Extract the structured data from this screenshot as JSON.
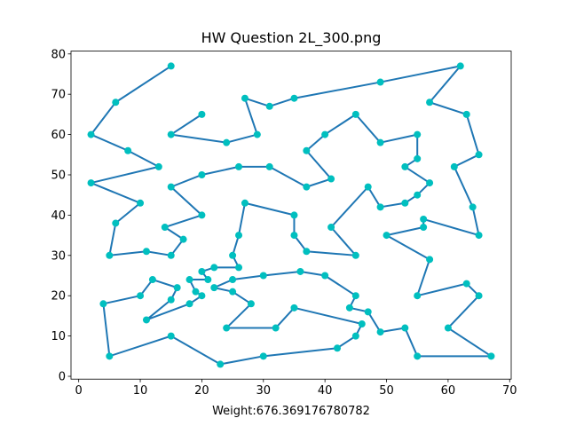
{
  "chart_data": {
    "type": "line",
    "title": "HW Question 2L_300.png",
    "x_label": "Weight:676.369176780782",
    "line_color": "#1f77b4",
    "marker_color": "#00bfbf",
    "x": [
      15,
      6,
      2,
      8,
      13,
      2,
      10,
      6,
      5,
      11,
      15,
      17,
      14,
      20,
      15,
      20,
      26,
      31,
      37,
      41,
      37,
      40,
      45,
      49,
      55,
      55,
      53,
      57,
      55,
      53,
      49,
      47,
      41,
      45,
      37,
      35,
      35,
      27,
      26,
      25,
      26,
      22,
      20,
      21,
      18,
      19,
      20,
      18,
      11,
      15,
      16,
      12,
      10,
      4,
      5,
      15,
      23,
      30,
      42,
      45,
      46,
      35,
      32,
      24,
      28,
      25,
      22,
      25,
      30,
      36,
      40,
      45,
      44,
      47,
      49,
      53,
      55,
      67,
      60,
      65,
      63,
      55,
      57,
      50,
      56,
      56,
      65,
      64,
      61,
      65,
      63,
      57,
      62,
      49,
      35,
      31,
      27,
      29,
      24,
      15,
      20
    ],
    "values": [
      77,
      68,
      60,
      56,
      52,
      48,
      43,
      38,
      30,
      31,
      30,
      34,
      37,
      40,
      47,
      50,
      52,
      52,
      47,
      49,
      56,
      60,
      65,
      58,
      60,
      54,
      52,
      48,
      45,
      43,
      42,
      47,
      37,
      30,
      31,
      35,
      40,
      43,
      35,
      30,
      27,
      27,
      26,
      24,
      24,
      21,
      20,
      18,
      14,
      19,
      22,
      24,
      20,
      18,
      5,
      10,
      3,
      5,
      7,
      10,
      13,
      17,
      12,
      12,
      18,
      21,
      22,
      24,
      25,
      26,
      25,
      20,
      17,
      16,
      11,
      12,
      5,
      5,
      12,
      20,
      23,
      20,
      29,
      35,
      37,
      39,
      35,
      42,
      52,
      55,
      65,
      68,
      77,
      73,
      69,
      67,
      69,
      60,
      58,
      60,
      65
    ],
    "xlim": [
      -1.25,
      70.25
    ],
    "ylim": [
      -0.7,
      80.7
    ],
    "xticks": [
      0,
      10,
      20,
      30,
      40,
      50,
      60,
      70
    ],
    "yticks": [
      0,
      10,
      20,
      30,
      40,
      50,
      60,
      70,
      80
    ]
  }
}
